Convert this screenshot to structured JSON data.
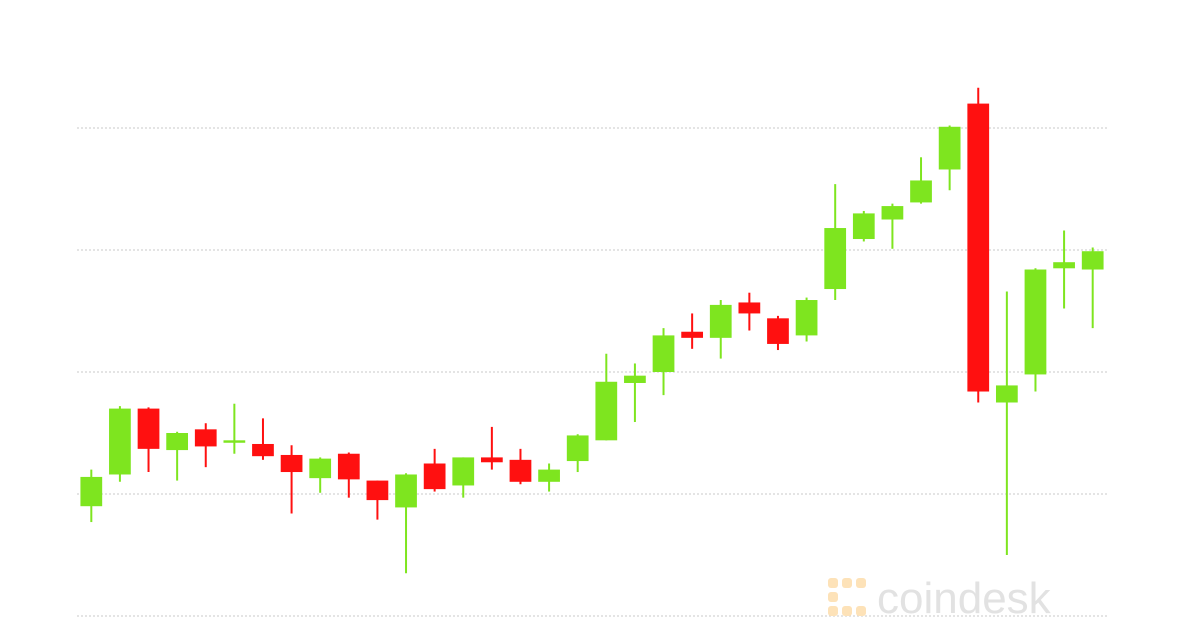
{
  "chart_data": {
    "type": "candlestick",
    "watermark": "coindesk",
    "up_color": "#7ee51f",
    "down_color": "#ff1010",
    "ylim": [
      0,
      4.5
    ],
    "yticks": [
      0,
      1,
      2,
      3,
      4
    ],
    "grid": true,
    "open": [
      0.9,
      1.16,
      1.7,
      1.36,
      1.53,
      1.42,
      1.41,
      1.32,
      1.13,
      1.33,
      1.11,
      0.89,
      1.25,
      1.07,
      1.3,
      1.28,
      1.1,
      1.27,
      1.44,
      1.91,
      2.0,
      2.33,
      2.28,
      2.57,
      2.44,
      2.3,
      2.68,
      3.09,
      3.25,
      3.39,
      3.66,
      4.2,
      1.75,
      1.98,
      2.85,
      2.84
    ],
    "high": [
      1.2,
      1.72,
      1.71,
      1.51,
      1.58,
      1.74,
      1.62,
      1.4,
      1.3,
      1.34,
      1.11,
      1.17,
      1.37,
      1.3,
      1.55,
      1.37,
      1.25,
      1.49,
      2.15,
      2.07,
      2.36,
      2.48,
      2.59,
      2.65,
      2.46,
      2.61,
      3.54,
      3.32,
      3.38,
      3.76,
      4.02,
      4.33,
      2.66,
      2.85,
      3.16,
      3.02
    ],
    "low": [
      0.77,
      1.1,
      1.18,
      1.11,
      1.22,
      1.33,
      1.28,
      0.84,
      1.01,
      0.97,
      0.79,
      0.35,
      1.02,
      0.97,
      1.2,
      1.08,
      1.02,
      1.18,
      1.44,
      1.59,
      1.81,
      2.19,
      2.11,
      2.34,
      2.18,
      2.25,
      2.59,
      3.07,
      3.01,
      3.38,
      3.49,
      1.75,
      0.5,
      1.84,
      2.52,
      2.36
    ],
    "close": [
      1.14,
      1.7,
      1.37,
      1.5,
      1.39,
      1.44,
      1.31,
      1.18,
      1.29,
      1.12,
      0.95,
      1.16,
      1.04,
      1.3,
      1.26,
      1.1,
      1.2,
      1.48,
      1.92,
      1.97,
      2.3,
      2.28,
      2.55,
      2.48,
      2.23,
      2.59,
      3.18,
      3.3,
      3.36,
      3.57,
      4.01,
      1.84,
      1.89,
      2.84,
      2.9,
      2.99
    ]
  }
}
